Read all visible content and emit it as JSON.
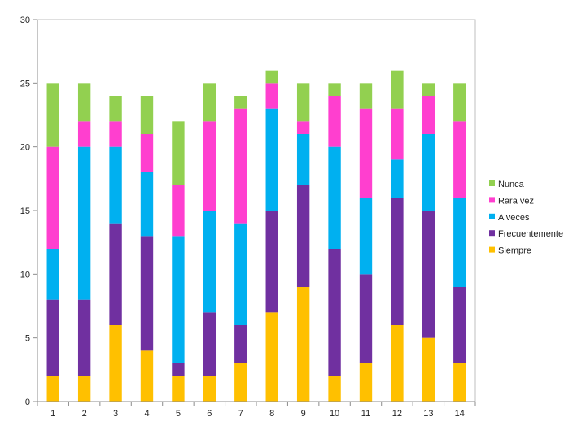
{
  "chart_data": {
    "type": "bar",
    "stacked": true,
    "categories": [
      "1",
      "2",
      "3",
      "4",
      "5",
      "6",
      "7",
      "8",
      "9",
      "10",
      "11",
      "12",
      "13",
      "14"
    ],
    "series": [
      {
        "name": "Siempre",
        "color": "#FFC000",
        "values": [
          2,
          2,
          6,
          4,
          2,
          2,
          3,
          7,
          9,
          2,
          3,
          6,
          5,
          3
        ]
      },
      {
        "name": "Frecuentemente",
        "color": "#7030A0",
        "values": [
          6,
          6,
          8,
          9,
          1,
          5,
          3,
          8,
          8,
          10,
          7,
          10,
          10,
          6
        ]
      },
      {
        "name": "A veces",
        "color": "#00B0F0",
        "values": [
          4,
          12,
          6,
          5,
          10,
          8,
          8,
          8,
          4,
          8,
          6,
          3,
          6,
          7
        ]
      },
      {
        "name": "Rara vez",
        "color": "#FF3FCF",
        "values": [
          8,
          2,
          2,
          3,
          4,
          7,
          9,
          2,
          1,
          4,
          7,
          4,
          3,
          6
        ]
      },
      {
        "name": "Nunca",
        "color": "#92D050",
        "values": [
          5,
          3,
          2,
          3,
          5,
          3,
          1,
          1,
          3,
          1,
          2,
          3,
          1,
          3
        ]
      }
    ],
    "y_ticks": [
      "0",
      "5",
      "10",
      "15",
      "20",
      "25",
      "30"
    ],
    "ylim": [
      0,
      30
    ],
    "legend_position": "right",
    "grid": false
  }
}
